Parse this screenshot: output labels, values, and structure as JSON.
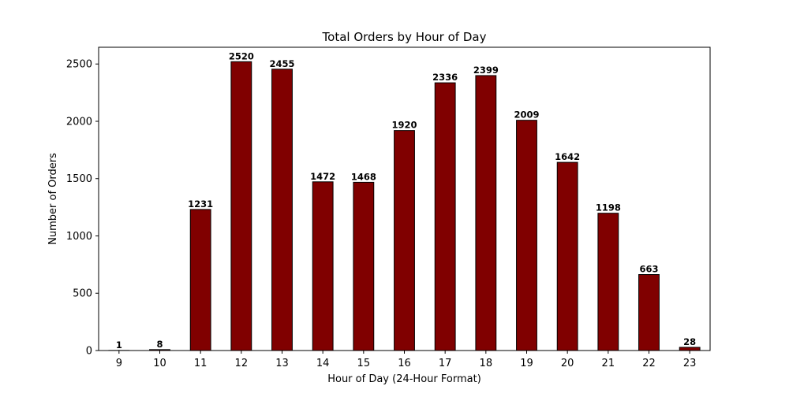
{
  "chart_data": {
    "type": "bar",
    "title": "Total Orders by Hour of Day",
    "xlabel": "Hour of Day (24-Hour Format)",
    "ylabel": "Number of Orders",
    "categories": [
      "9",
      "10",
      "11",
      "12",
      "13",
      "14",
      "15",
      "16",
      "17",
      "18",
      "19",
      "20",
      "21",
      "22",
      "23"
    ],
    "values": [
      1,
      8,
      1231,
      2520,
      2455,
      1472,
      1468,
      1920,
      2336,
      2399,
      2009,
      1642,
      1198,
      663,
      28
    ],
    "data_labels": [
      "1",
      "8",
      "1231",
      "2520",
      "2455",
      "1472",
      "1468",
      "1920",
      "2336",
      "2399",
      "2009",
      "1642",
      "1198",
      "663",
      "28"
    ],
    "ylim": [
      0,
      2646
    ],
    "yticks": [
      0,
      500,
      1000,
      1500,
      2000,
      2500
    ],
    "ytick_labels": [
      "0",
      "500",
      "1000",
      "1500",
      "2000",
      "2500"
    ],
    "grid": false,
    "legend": "none",
    "bar_color": "#800000",
    "bar_edge_color": "#000000"
  }
}
